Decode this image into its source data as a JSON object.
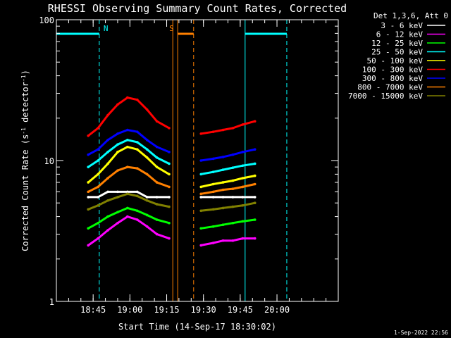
{
  "chart_data": {
    "type": "line",
    "title": "RHESSI Observing Summary Count Rates, Corrected",
    "xlabel": "Start Time (14-Sep-17 18:30:02)",
    "ylabel": "Corrected Count Rate (s⁻¹ detector⁻¹)",
    "ylabel_parts": [
      "Corrected Count Rate (s",
      "-1",
      " detector",
      "-1",
      ")"
    ],
    "x_unit": "minutes after 18:30:02",
    "xlim": [
      0,
      115
    ],
    "ylim": [
      1,
      100
    ],
    "yscale": "log",
    "grid": false,
    "x_ticks": [
      {
        "v": 15,
        "label": "18:45"
      },
      {
        "v": 30,
        "label": "19:00"
      },
      {
        "v": 45,
        "label": "19:15"
      },
      {
        "v": 60,
        "label": "19:30"
      },
      {
        "v": 75,
        "label": "19:45"
      },
      {
        "v": 90,
        "label": "20:00"
      }
    ],
    "y_ticks": [
      {
        "v": 1,
        "label": "1"
      },
      {
        "v": 10,
        "label": "10"
      },
      {
        "v": 100,
        "label": "100"
      }
    ],
    "legend_header": "Det 1,3,6, Att 0",
    "legend_position": "right",
    "series": [
      {
        "name": "3 - 6 keV",
        "color": "#ffffff",
        "values": [
          [
            13,
            5.5
          ],
          [
            17,
            5.5
          ],
          [
            21,
            6
          ],
          [
            25,
            6
          ],
          [
            29,
            6
          ],
          [
            33,
            6
          ],
          [
            37,
            5.5
          ],
          [
            41,
            5.5
          ],
          [
            46,
            5.5
          ],
          [
            59,
            5.5
          ],
          [
            64,
            5.5
          ],
          [
            68,
            5.5
          ],
          [
            72,
            5.5
          ],
          [
            76,
            5.5
          ],
          [
            81,
            5.5
          ]
        ]
      },
      {
        "name": "6 - 12 keV",
        "color": "#ff00ff",
        "values": [
          [
            13,
            2.5
          ],
          [
            17,
            2.8
          ],
          [
            21,
            3.2
          ],
          [
            25,
            3.6
          ],
          [
            29,
            4
          ],
          [
            33,
            3.8
          ],
          [
            37,
            3.4
          ],
          [
            41,
            3
          ],
          [
            46,
            2.8
          ],
          [
            59,
            2.5
          ],
          [
            64,
            2.6
          ],
          [
            68,
            2.7
          ],
          [
            72,
            2.7
          ],
          [
            76,
            2.8
          ],
          [
            81,
            2.8
          ]
        ]
      },
      {
        "name": "12 - 25 keV",
        "color": "#00ff00",
        "values": [
          [
            13,
            3.3
          ],
          [
            17,
            3.6
          ],
          [
            21,
            4
          ],
          [
            25,
            4.3
          ],
          [
            29,
            4.6
          ],
          [
            33,
            4.4
          ],
          [
            37,
            4.1
          ],
          [
            41,
            3.8
          ],
          [
            46,
            3.6
          ],
          [
            59,
            3.3
          ],
          [
            64,
            3.4
          ],
          [
            68,
            3.5
          ],
          [
            72,
            3.6
          ],
          [
            76,
            3.7
          ],
          [
            81,
            3.8
          ]
        ]
      },
      {
        "name": "25 - 50 keV",
        "color": "#00ffff",
        "values": [
          [
            13,
            9
          ],
          [
            17,
            10
          ],
          [
            21,
            11.5
          ],
          [
            25,
            13
          ],
          [
            29,
            14
          ],
          [
            33,
            13.5
          ],
          [
            37,
            12
          ],
          [
            41,
            10.5
          ],
          [
            46,
            9.5
          ],
          [
            59,
            8
          ],
          [
            64,
            8.3
          ],
          [
            68,
            8.6
          ],
          [
            72,
            8.9
          ],
          [
            76,
            9.2
          ],
          [
            81,
            9.5
          ]
        ]
      },
      {
        "name": "50 - 100 keV",
        "color": "#ffff00",
        "values": [
          [
            13,
            7
          ],
          [
            17,
            8
          ],
          [
            21,
            9.5
          ],
          [
            25,
            11.5
          ],
          [
            29,
            12.5
          ],
          [
            33,
            12
          ],
          [
            37,
            10.5
          ],
          [
            41,
            9
          ],
          [
            46,
            8
          ],
          [
            59,
            6.5
          ],
          [
            64,
            6.8
          ],
          [
            68,
            7
          ],
          [
            72,
            7.2
          ],
          [
            76,
            7.5
          ],
          [
            81,
            7.8
          ]
        ]
      },
      {
        "name": "100 - 300 keV",
        "color": "#ff0000",
        "values": [
          [
            13,
            15
          ],
          [
            17,
            17
          ],
          [
            21,
            21
          ],
          [
            25,
            25
          ],
          [
            29,
            28
          ],
          [
            33,
            27
          ],
          [
            37,
            23
          ],
          [
            41,
            19
          ],
          [
            46,
            17
          ],
          [
            59,
            15.5
          ],
          [
            64,
            16
          ],
          [
            68,
            16.5
          ],
          [
            72,
            17
          ],
          [
            76,
            18
          ],
          [
            81,
            19
          ]
        ]
      },
      {
        "name": "300 - 800 keV",
        "color": "#0000ff",
        "values": [
          [
            13,
            11
          ],
          [
            17,
            12
          ],
          [
            21,
            14
          ],
          [
            25,
            15.5
          ],
          [
            29,
            16.5
          ],
          [
            33,
            16
          ],
          [
            37,
            14
          ],
          [
            41,
            12.5
          ],
          [
            46,
            11.5
          ],
          [
            59,
            10
          ],
          [
            64,
            10.3
          ],
          [
            68,
            10.6
          ],
          [
            72,
            11
          ],
          [
            76,
            11.5
          ],
          [
            81,
            12
          ]
        ]
      },
      {
        "name": "800 - 7000 keV",
        "color": "#ff8000",
        "values": [
          [
            13,
            6
          ],
          [
            17,
            6.5
          ],
          [
            21,
            7.5
          ],
          [
            25,
            8.5
          ],
          [
            29,
            9
          ],
          [
            33,
            8.8
          ],
          [
            37,
            8
          ],
          [
            41,
            7
          ],
          [
            46,
            6.5
          ],
          [
            59,
            5.8
          ],
          [
            64,
            6
          ],
          [
            68,
            6.2
          ],
          [
            72,
            6.3
          ],
          [
            76,
            6.5
          ],
          [
            81,
            6.8
          ]
        ]
      },
      {
        "name": "7000 - 15000 keV",
        "color": "#808000",
        "values": [
          [
            13,
            4.5
          ],
          [
            17,
            4.8
          ],
          [
            21,
            5.2
          ],
          [
            25,
            5.5
          ],
          [
            29,
            5.8
          ],
          [
            33,
            5.6
          ],
          [
            37,
            5.2
          ],
          [
            41,
            4.9
          ],
          [
            46,
            4.7
          ],
          [
            59,
            4.4
          ],
          [
            64,
            4.5
          ],
          [
            68,
            4.6
          ],
          [
            72,
            4.7
          ],
          [
            76,
            4.8
          ],
          [
            81,
            5
          ]
        ]
      }
    ],
    "annotations": [
      {
        "label": "N",
        "color": "#00ffff",
        "bar": [
          0,
          17.5
        ],
        "edges": [
          [
            0,
            "solid"
          ],
          [
            17.5,
            "dashed"
          ]
        ]
      },
      {
        "label": "",
        "color": "#00ffff",
        "bar": [
          77,
          94
        ],
        "edges": [
          [
            77,
            "solid"
          ],
          [
            94,
            "dashed"
          ]
        ]
      },
      {
        "label": "S",
        "color": "#ff8000",
        "bar": [
          49.5,
          56
        ],
        "edges": [
          [
            47.5,
            "solid"
          ],
          [
            49.5,
            "solid"
          ],
          [
            56,
            "dashed"
          ]
        ]
      }
    ],
    "footer_timestamp": "1-Sep-2022 22:56"
  }
}
